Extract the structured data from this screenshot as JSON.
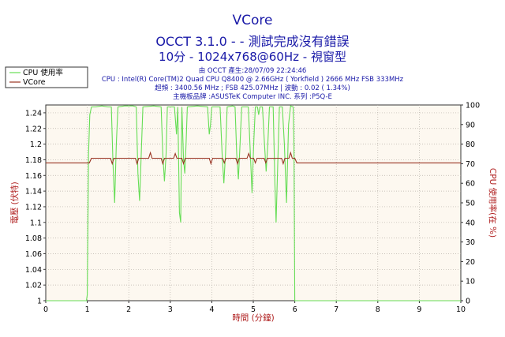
{
  "header": {
    "title": "VCore",
    "subtitle": "OCCT 3.1.0 -  - 測試完成沒有錯誤",
    "mode": "10分 - 1024x768@60Hz - 視窗型",
    "info": [
      "由 OCCT 產生:28/07/09 22:24:46",
      "CPU : Intel(R) Core(TM)2 Quad CPU Q8400 @ 2.66GHz ( Yorkfield ) 2666 MHz FSB 333MHz",
      "超頻 : 3400.56 MHz ; FSB 425.07MHz | 波動 : 0.02 ( 1.34%)",
      "主機板品牌 :ASUSTeK Computer INC. 系列 :P5Q-E"
    ]
  },
  "chart_data": {
    "type": "line",
    "xlabel": "時間 (分鐘)",
    "ylabel_left": "電壓 (伏特)",
    "ylabel_right": "CPU 使用率(在 %)",
    "xlim": [
      0,
      10
    ],
    "ylim_left": [
      1.0,
      1.25
    ],
    "ylim_right": [
      0,
      100
    ],
    "x_ticks": [
      "0",
      "1",
      "2",
      "3",
      "4",
      "5",
      "6",
      "7",
      "8",
      "9",
      "10"
    ],
    "y_ticks_left": [
      "1",
      "1.02",
      "1.04",
      "1.06",
      "1.08",
      "1.1",
      "1.12",
      "1.14",
      "1.16",
      "1.18",
      "1.2",
      "1.22",
      "1.24"
    ],
    "y_ticks_right": [
      "0",
      "10",
      "20",
      "30",
      "40",
      "50",
      "60",
      "70",
      "80",
      "90",
      "100"
    ],
    "grid": "dotted",
    "background": "#fdf8f0",
    "legend_position": "top-left",
    "series": [
      {
        "name": "CPU 使用率",
        "axis": "right",
        "color": "#66dd55",
        "points": [
          [
            0,
            0
          ],
          [
            0.98,
            0
          ],
          [
            1.0,
            3
          ],
          [
            1.03,
            75
          ],
          [
            1.06,
            95
          ],
          [
            1.1,
            99
          ],
          [
            1.2,
            99
          ],
          [
            1.35,
            99.5
          ],
          [
            1.5,
            99
          ],
          [
            1.58,
            99
          ],
          [
            1.62,
            70
          ],
          [
            1.66,
            50
          ],
          [
            1.7,
            80
          ],
          [
            1.74,
            99
          ],
          [
            1.9,
            99.5
          ],
          [
            2.1,
            99.5
          ],
          [
            2.18,
            99
          ],
          [
            2.22,
            65
          ],
          [
            2.26,
            51
          ],
          [
            2.3,
            75
          ],
          [
            2.34,
            99
          ],
          [
            2.6,
            99.5
          ],
          [
            2.78,
            99
          ],
          [
            2.82,
            75
          ],
          [
            2.86,
            61
          ],
          [
            2.9,
            75
          ],
          [
            2.93,
            99
          ],
          [
            3.1,
            99
          ],
          [
            3.15,
            85
          ],
          [
            3.18,
            99
          ],
          [
            3.22,
            45
          ],
          [
            3.25,
            40
          ],
          [
            3.28,
            99
          ],
          [
            3.32,
            72
          ],
          [
            3.35,
            65
          ],
          [
            3.38,
            80
          ],
          [
            3.41,
            99
          ],
          [
            3.65,
            99.5
          ],
          [
            3.9,
            99
          ],
          [
            3.94,
            85
          ],
          [
            3.97,
            90
          ],
          [
            4.0,
            99
          ],
          [
            4.2,
            99
          ],
          [
            4.25,
            75
          ],
          [
            4.29,
            60
          ],
          [
            4.33,
            75
          ],
          [
            4.37,
            99
          ],
          [
            4.5,
            99.5
          ],
          [
            4.56,
            99
          ],
          [
            4.6,
            75
          ],
          [
            4.64,
            62
          ],
          [
            4.68,
            80
          ],
          [
            4.72,
            99
          ],
          [
            4.88,
            99
          ],
          [
            4.93,
            75
          ],
          [
            4.97,
            55
          ],
          [
            5.01,
            80
          ],
          [
            5.05,
            99
          ],
          [
            5.1,
            99
          ],
          [
            5.13,
            95
          ],
          [
            5.16,
            99
          ],
          [
            5.22,
            99
          ],
          [
            5.27,
            80
          ],
          [
            5.31,
            66
          ],
          [
            5.35,
            80
          ],
          [
            5.39,
            99
          ],
          [
            5.48,
            99
          ],
          [
            5.52,
            60
          ],
          [
            5.55,
            40
          ],
          [
            5.59,
            70
          ],
          [
            5.63,
            99
          ],
          [
            5.7,
            99
          ],
          [
            5.75,
            80
          ],
          [
            5.8,
            50
          ],
          [
            5.85,
            90
          ],
          [
            5.9,
            99.5
          ],
          [
            5.96,
            99
          ],
          [
            5.98,
            80
          ],
          [
            6.0,
            0
          ],
          [
            10,
            0
          ]
        ]
      },
      {
        "name": "VCore",
        "axis": "left",
        "color": "#993322",
        "points": [
          [
            0,
            1.176
          ],
          [
            1.0,
            1.176
          ],
          [
            1.05,
            1.176
          ],
          [
            1.1,
            1.182
          ],
          [
            1.56,
            1.182
          ],
          [
            1.6,
            1.175
          ],
          [
            1.64,
            1.182
          ],
          [
            2.16,
            1.182
          ],
          [
            2.2,
            1.175
          ],
          [
            2.24,
            1.182
          ],
          [
            2.48,
            1.182
          ],
          [
            2.52,
            1.189
          ],
          [
            2.56,
            1.182
          ],
          [
            2.78,
            1.182
          ],
          [
            2.82,
            1.175
          ],
          [
            2.86,
            1.182
          ],
          [
            3.08,
            1.182
          ],
          [
            3.12,
            1.188
          ],
          [
            3.16,
            1.182
          ],
          [
            3.28,
            1.182
          ],
          [
            3.32,
            1.175
          ],
          [
            3.36,
            1.182
          ],
          [
            3.94,
            1.182
          ],
          [
            3.98,
            1.175
          ],
          [
            4.02,
            1.182
          ],
          [
            4.26,
            1.182
          ],
          [
            4.3,
            1.176
          ],
          [
            4.34,
            1.182
          ],
          [
            4.58,
            1.182
          ],
          [
            4.62,
            1.175
          ],
          [
            4.66,
            1.182
          ],
          [
            4.85,
            1.182
          ],
          [
            4.89,
            1.188
          ],
          [
            4.93,
            1.182
          ],
          [
            5.01,
            1.182
          ],
          [
            5.05,
            1.176
          ],
          [
            5.09,
            1.182
          ],
          [
            5.26,
            1.182
          ],
          [
            5.3,
            1.176
          ],
          [
            5.34,
            1.182
          ],
          [
            5.68,
            1.182
          ],
          [
            5.72,
            1.175
          ],
          [
            5.76,
            1.182
          ],
          [
            5.86,
            1.182
          ],
          [
            5.9,
            1.189
          ],
          [
            5.94,
            1.182
          ],
          [
            6.0,
            1.182
          ],
          [
            6.05,
            1.176
          ],
          [
            10,
            1.176
          ]
        ]
      }
    ]
  }
}
